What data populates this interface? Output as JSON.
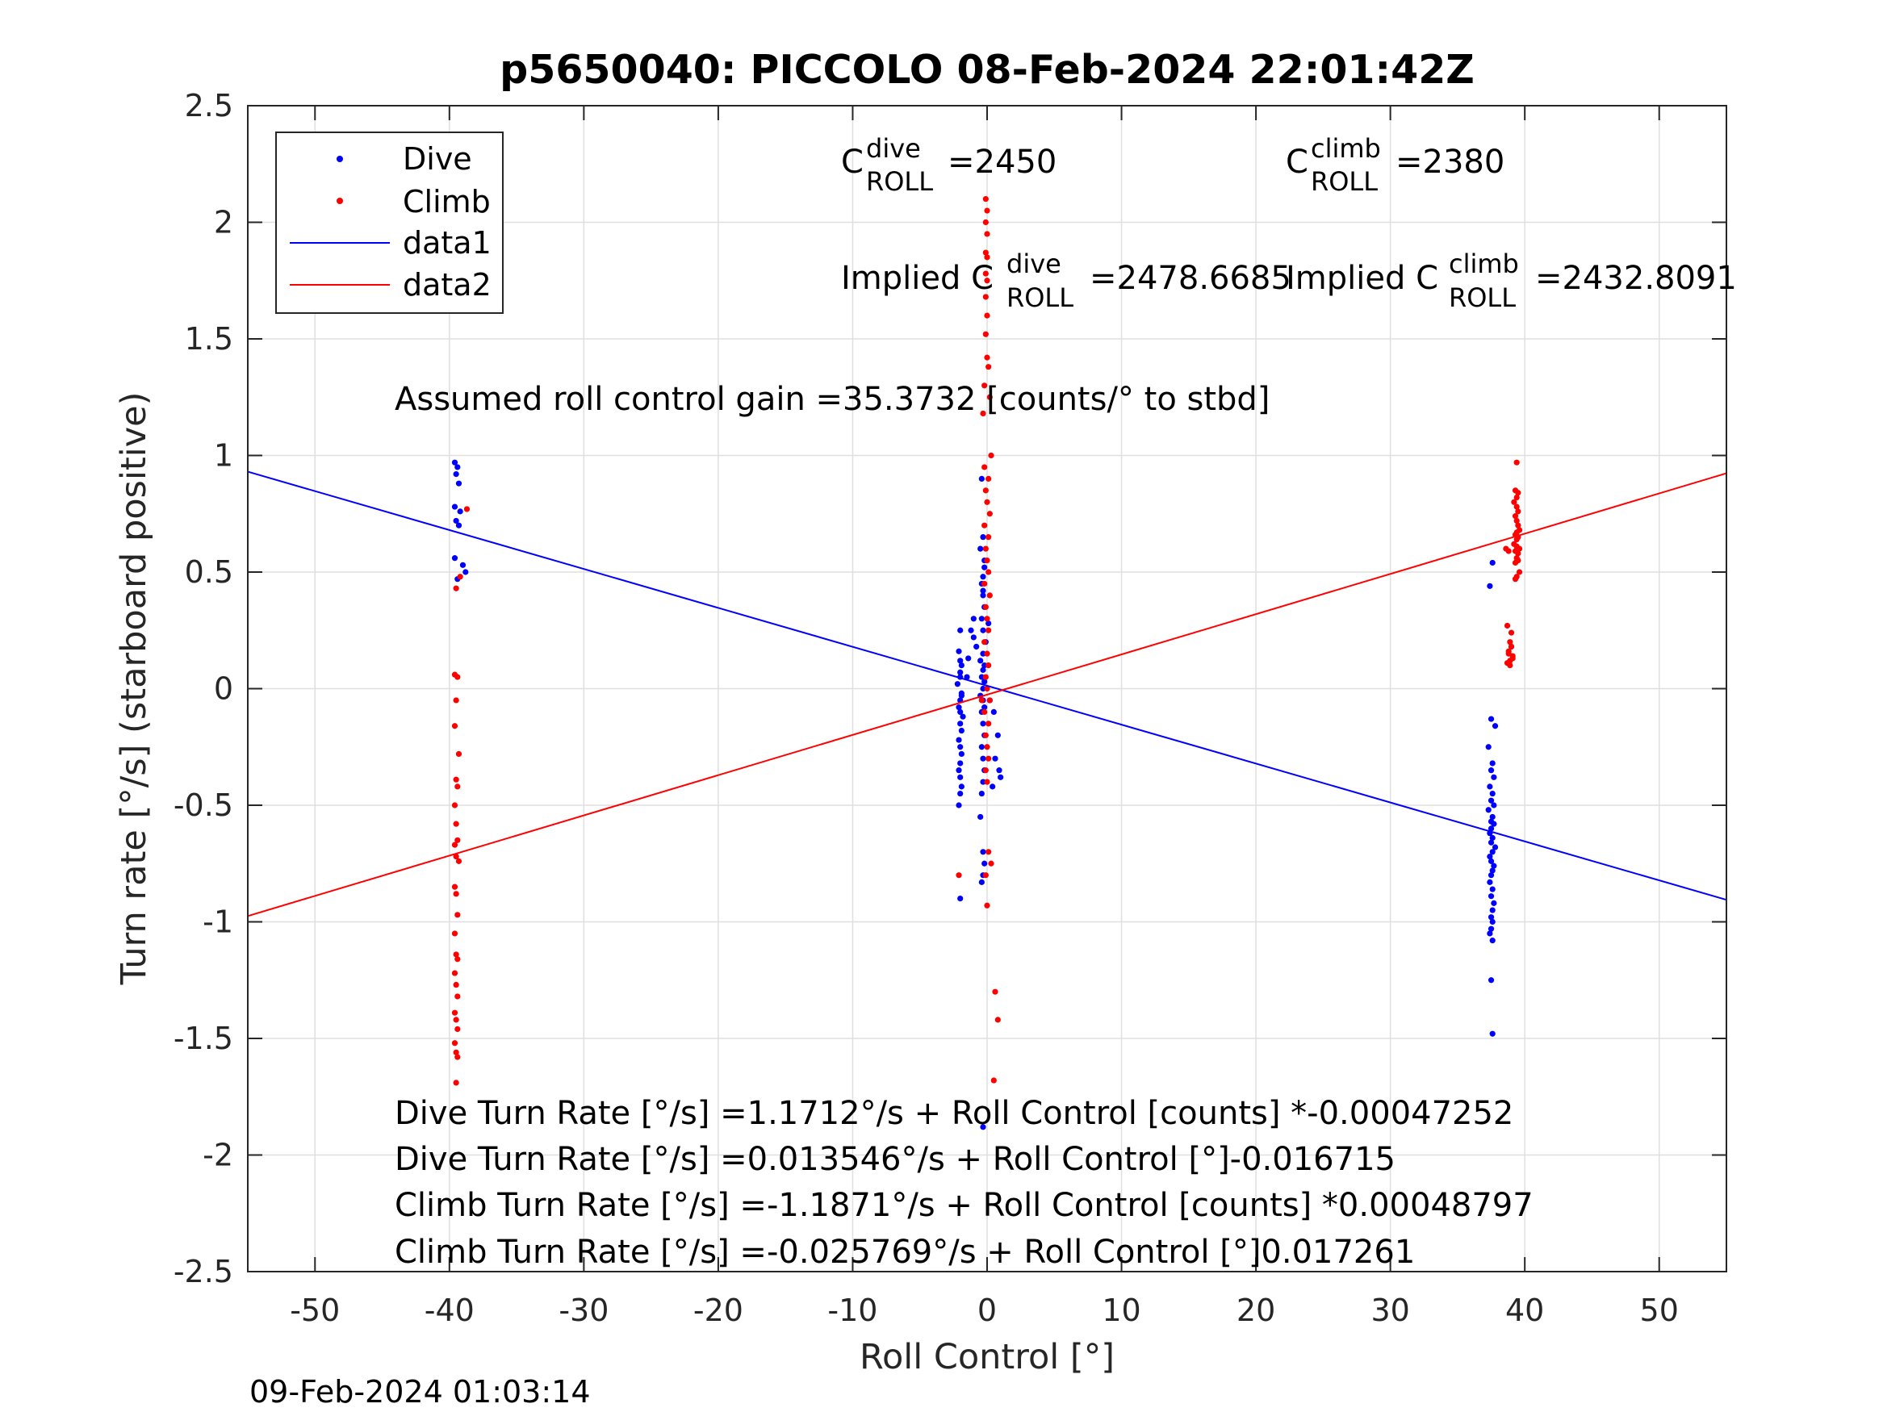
{
  "chart_data": {
    "type": "scatter",
    "title": "p5650040: PICCOLO 08-Feb-2024 22:01:42Z",
    "xlabel": "Roll Control [°]",
    "ylabel": "Turn rate [°/s] (starboard positive)",
    "xlim": [
      -55,
      55
    ],
    "ylim": [
      -2.5,
      2.5
    ],
    "grid": true,
    "legend_position": "top-left",
    "x_ticks": [
      -50,
      -40,
      -30,
      -20,
      -10,
      0,
      10,
      20,
      30,
      40,
      50
    ],
    "y_ticks": [
      -2.5,
      -2,
      -1.5,
      -1,
      -0.5,
      0,
      0.5,
      1,
      1.5,
      2,
      2.5
    ],
    "x_tick_labels": [
      "-50",
      "-40",
      "-30",
      "-20",
      "-10",
      "0",
      "10",
      "20",
      "30",
      "40",
      "50"
    ],
    "y_tick_labels": [
      "-2.5",
      "-2",
      "-1.5",
      "-1",
      "-0.5",
      "0",
      "0.5",
      "1",
      "1.5",
      "2",
      "2.5"
    ],
    "series": [
      {
        "name": "Dive",
        "kind": "points",
        "color": "#0000ff",
        "x": [
          -39.6,
          -39.4,
          -39.5,
          -39.3,
          -39.6,
          -39.2,
          -39.5,
          -39.3,
          -39.0,
          -38.8,
          -39.6,
          -39.4,
          -2.0,
          -2.1,
          -1.9,
          -2.0,
          -2.2,
          -1.9,
          -2.0,
          -2.1,
          -2.0,
          -1.8,
          -2.0,
          -1.9,
          -2.1,
          -2.0,
          -1.9,
          -2.0,
          -2.1,
          -2.0,
          -1.9,
          -2.0,
          -2.1,
          -2.0,
          -2.0,
          -1.9,
          -2.0,
          -0.4,
          -0.3,
          -0.5,
          -0.2,
          -0.3,
          -0.4,
          -0.3,
          -0.2,
          -0.4,
          -0.3,
          -0.1,
          -0.3,
          -0.5,
          -0.2,
          -0.3,
          -0.4,
          -0.2,
          -0.3,
          -0.5,
          -0.3,
          -0.2,
          -0.4,
          -0.3,
          -0.2,
          -0.4,
          -0.3,
          -0.2,
          -0.3,
          -0.4,
          -0.3,
          -0.2,
          -0.3,
          -0.4,
          -0.3,
          -0.2,
          -0.3,
          -1.2,
          -1.0,
          -0.8,
          0.2,
          0.5,
          0.9,
          1.0,
          0.4,
          0.6,
          0.8,
          -1.0,
          -1.4,
          -1.5,
          -0.5,
          0.1,
          37.6,
          37.4,
          37.5,
          37.8,
          37.3,
          37.6,
          37.5,
          37.7,
          37.4,
          37.6,
          37.5,
          37.3,
          37.6,
          37.7,
          37.5,
          37.4,
          37.6,
          37.5,
          37.8,
          37.6,
          37.4,
          37.5,
          37.7,
          37.6,
          37.5,
          37.4,
          37.6,
          37.5,
          37.7,
          37.6,
          37.5,
          37.6,
          37.5,
          37.4,
          37.6,
          37.5,
          37.6,
          37.7,
          37.5
        ],
        "y": [
          0.97,
          0.95,
          0.92,
          0.88,
          0.78,
          0.76,
          0.72,
          0.7,
          0.53,
          0.5,
          0.56,
          0.47,
          0.25,
          0.16,
          0.1,
          0.05,
          0.02,
          -0.02,
          -0.05,
          -0.08,
          -0.1,
          -0.12,
          -0.15,
          -0.18,
          -0.22,
          -0.25,
          -0.28,
          -0.32,
          -0.35,
          -0.38,
          -0.42,
          -0.45,
          -0.5,
          0.07,
          0.12,
          -0.03,
          -0.9,
          0.9,
          0.65,
          0.6,
          0.52,
          0.48,
          0.45,
          0.4,
          0.35,
          0.3,
          0.25,
          0.2,
          0.15,
          0.12,
          0.1,
          0.08,
          0.05,
          0.03,
          0.0,
          -0.03,
          -0.05,
          -0.08,
          -0.1,
          -0.15,
          -0.2,
          -0.25,
          -0.3,
          -0.35,
          -0.4,
          -0.45,
          -0.7,
          -0.75,
          -0.8,
          -0.83,
          -1.88,
          0.55,
          0.42,
          0.25,
          0.3,
          0.18,
          -0.05,
          -0.1,
          -0.35,
          -0.38,
          -0.42,
          -0.3,
          -0.2,
          0.22,
          0.13,
          0.05,
          -0.55,
          0.28,
          0.54,
          0.44,
          -0.13,
          -0.16,
          -0.25,
          -0.32,
          -0.35,
          -0.38,
          -0.42,
          -0.45,
          -0.48,
          -0.52,
          -0.55,
          -0.58,
          -0.6,
          -0.62,
          -0.64,
          -0.66,
          -0.68,
          -0.7,
          -0.72,
          -0.74,
          -0.76,
          -0.78,
          -0.8,
          -0.83,
          -0.86,
          -0.89,
          -0.92,
          -0.95,
          -0.98,
          -1.0,
          -1.03,
          -1.05,
          -1.08,
          -1.25,
          -1.48,
          -0.5,
          -0.57
        ]
      },
      {
        "name": "Climb",
        "kind": "points",
        "color": "#ff0000",
        "x": [
          -38.7,
          -39.2,
          -39.5,
          -39.6,
          -39.4,
          -39.5,
          -39.6,
          -39.3,
          -39.5,
          -39.4,
          -39.6,
          -39.5,
          -39.4,
          -39.6,
          -39.5,
          -39.3,
          -39.6,
          -39.5,
          -39.4,
          -39.6,
          -39.5,
          -39.4,
          -39.6,
          -39.5,
          -39.4,
          -39.6,
          -39.5,
          -39.4,
          -39.6,
          -39.5,
          -39.4,
          -39.5,
          -0.1,
          0.0,
          -0.1,
          0.0,
          -0.1,
          0.0,
          -0.1,
          0.0,
          -0.1,
          0.0,
          -0.1,
          0.0,
          0.1,
          -0.2,
          0.2,
          -0.3,
          0.3,
          -0.2,
          0.1,
          -0.1,
          0.0,
          0.2,
          -0.2,
          0.1,
          -0.1,
          0.0,
          0.1,
          -0.2,
          0.2,
          -0.1,
          0.0,
          0.1,
          -0.2,
          0.0,
          0.1,
          -0.1,
          0.0,
          0.2,
          -0.2,
          0.1,
          -0.1,
          0.0,
          0.1,
          -0.1,
          0.0,
          0.1,
          -0.1,
          0.0,
          -2.1,
          0.3,
          0.6,
          0.8,
          0.5,
          -0.4,
          39.4,
          39.3,
          39.5,
          39.4,
          39.2,
          39.4,
          39.5,
          39.3,
          39.4,
          39.5,
          39.6,
          39.4,
          39.3,
          39.5,
          39.4,
          39.2,
          39.4,
          39.6,
          39.3,
          39.5,
          39.4,
          39.5,
          39.3,
          39.6,
          39.4,
          39.3,
          38.6,
          38.8,
          38.7,
          38.9,
          39.0,
          38.8,
          39.1,
          38.9,
          38.7,
          39.0,
          38.8,
          39.0,
          38.9,
          39.1
        ],
        "y": [
          0.77,
          0.48,
          0.43,
          0.06,
          0.05,
          -0.05,
          -0.16,
          -0.28,
          -0.39,
          -0.42,
          -0.5,
          -0.58,
          -0.65,
          -0.67,
          -0.72,
          -0.74,
          -0.85,
          -0.88,
          -0.97,
          -1.05,
          -1.14,
          -1.16,
          -1.22,
          -1.27,
          -1.32,
          -1.39,
          -1.42,
          -1.46,
          -1.52,
          -1.56,
          -1.58,
          -1.69,
          2.1,
          2.05,
          2.0,
          1.95,
          1.87,
          1.85,
          1.78,
          1.75,
          1.68,
          1.6,
          1.52,
          1.42,
          1.38,
          1.3,
          1.25,
          1.18,
          1.0,
          0.95,
          0.9,
          0.85,
          0.8,
          0.75,
          0.7,
          0.65,
          0.6,
          0.55,
          0.5,
          0.45,
          0.4,
          0.35,
          0.3,
          0.25,
          0.2,
          0.15,
          0.1,
          0.05,
          0.0,
          -0.05,
          -0.1,
          -0.15,
          -0.2,
          -0.25,
          -0.3,
          -0.35,
          -0.4,
          -0.7,
          -0.8,
          -0.93,
          -0.8,
          -0.75,
          -1.3,
          -1.42,
          -1.68,
          -0.05,
          0.97,
          0.85,
          0.84,
          0.82,
          0.8,
          0.78,
          0.76,
          0.74,
          0.72,
          0.7,
          0.68,
          0.67,
          0.66,
          0.65,
          0.64,
          0.62,
          0.61,
          0.6,
          0.59,
          0.58,
          0.56,
          0.55,
          0.54,
          0.5,
          0.48,
          0.47,
          0.6,
          0.59,
          0.27,
          0.2,
          0.18,
          0.15,
          0.14,
          0.12,
          0.11,
          0.18,
          0.16,
          0.24,
          0.1,
          0.13
        ]
      },
      {
        "name": "data1",
        "kind": "line",
        "color": "#0000ff",
        "x": [
          -55,
          55
        ],
        "y": [
          0.9306,
          -0.9055
        ]
      },
      {
        "name": "data2",
        "kind": "line",
        "color": "#ff0000",
        "x": [
          -55,
          55
        ],
        "y": [
          -0.9751,
          0.9236
        ]
      }
    ],
    "annotations": {
      "c_dive": {
        "base": "C",
        "sup": "dive",
        "sub": "ROLL",
        "value": "=2450"
      },
      "c_climb": {
        "base": "C",
        "sup": "climb",
        "sub": "ROLL",
        "value": "=2380"
      },
      "implied_dive": {
        "prefix": "Implied C",
        "sup": "dive",
        "sub": "ROLL",
        "value": "=2478.6685"
      },
      "implied_climb": {
        "prefix": "Implied C",
        "sup": "climb",
        "sub": "ROLL",
        "value": "=2432.8091"
      },
      "gain": "Assumed roll control gain =35.3732 [counts/° to stbd]",
      "equations": [
        "Dive Turn Rate [°/s] =1.1712°/s + Roll Control [counts] *-0.00047252",
        "Dive Turn Rate [°/s] =0.013546°/s + Roll Control [°]-0.016715",
        "Climb Turn Rate [°/s] =-1.1871°/s + Roll Control [counts] *0.00048797",
        "Climb Turn Rate [°/s] =-0.025769°/s + Roll Control [°]0.017261"
      ]
    },
    "timestamp": "09-Feb-2024 01:03:14"
  }
}
